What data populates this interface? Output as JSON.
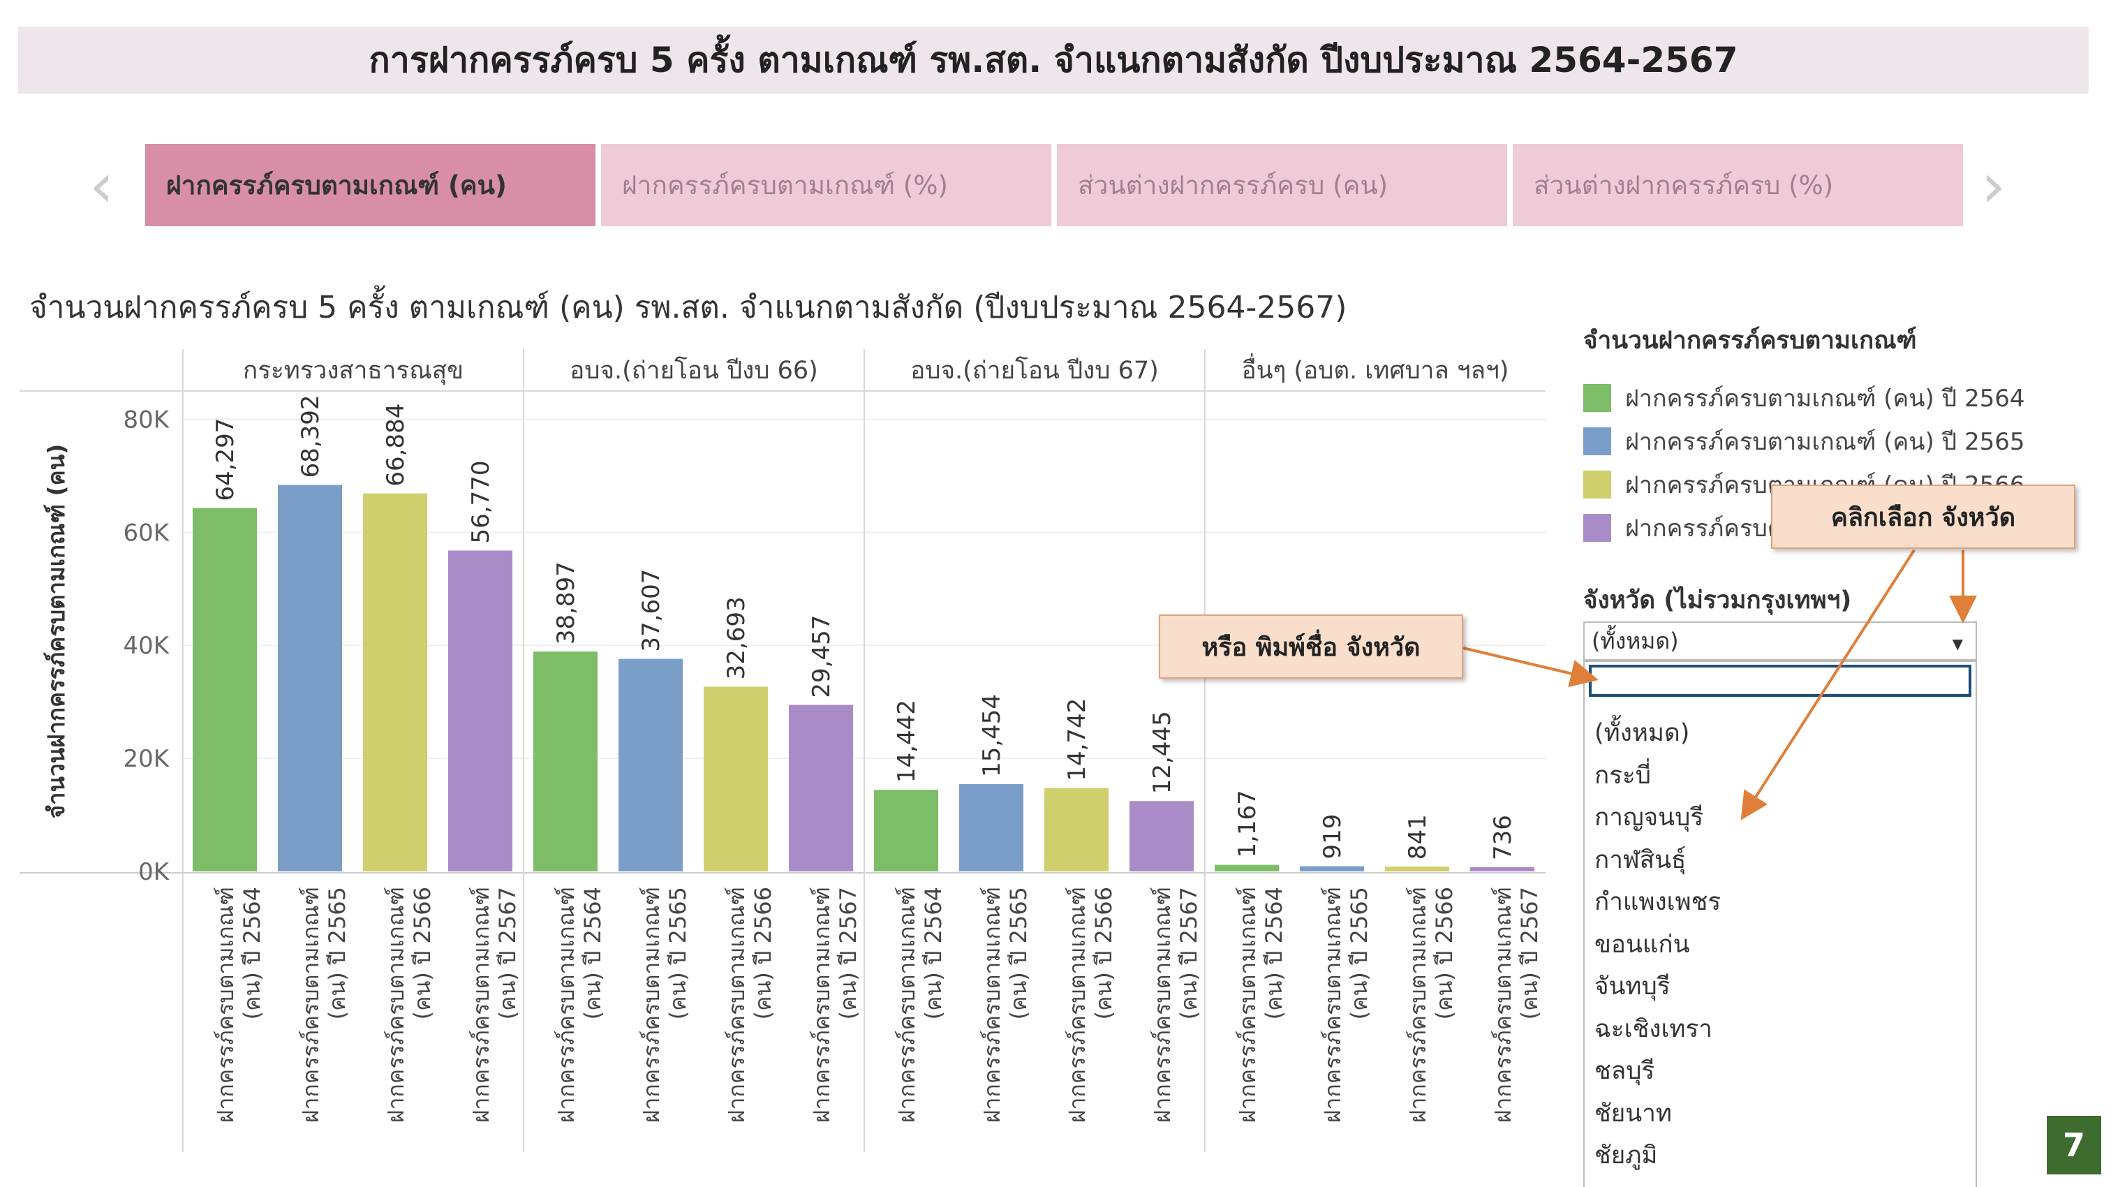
{
  "page": {
    "banner_title": "การฝากครรภ์ครบ 5 ครั้ง ตามเกณฑ์ รพ.สต. จำแนกตามสังกัด ปีงบประมาณ 2564-2567",
    "page_number": "7"
  },
  "tabs": [
    {
      "label": "ฝากครรภ์ครบตามเกณฑ์ (คน)",
      "active": true
    },
    {
      "label": "ฝากครรภ์ครบตามเกณฑ์ (%)",
      "active": false
    },
    {
      "label": "ส่วนต่างฝากครรภ์ครบ (คน)",
      "active": false
    },
    {
      "label": "ส่วนต่างฝากครรภ์ครบ (%)",
      "active": false
    }
  ],
  "nav": {
    "prev_icon": "chevron-left-icon",
    "next_icon": "chevron-right-icon"
  },
  "legend": {
    "title": "จำนวนฝากครรภ์ครบตามเกณฑ์",
    "items": [
      {
        "label": "ฝากครรภ์ครบตามเกณฑ์ (คน) ปี 2564",
        "color": "#7dbd68"
      },
      {
        "label": "ฝากครรภ์ครบตามเกณฑ์ (คน) ปี 2565",
        "color": "#7b9ec9"
      },
      {
        "label": "ฝากครรภ์ครบตามเกณฑ์ (คน) ปี 2566",
        "color": "#cfcf6e"
      },
      {
        "label": "ฝากครรภ์ครบตามเกณฑ์ (คน) ปี 2567",
        "color": "#a98bc7"
      }
    ]
  },
  "filter": {
    "title": "จังหวัด (ไม่รวมกรุงเทพฯ)",
    "selected": "(ทั้งหมด)",
    "search_value": "",
    "options": [
      "(ทั้งหมด)",
      "กระบี่",
      "กาญจนบุรี",
      "กาฬสินธุ์",
      "กำแพงเพชร",
      "ขอนแก่น",
      "จันทบุรี",
      "ฉะเชิงเทรา",
      "ชลบุรี",
      "ชัยนาท",
      "ชัยภูมิ"
    ]
  },
  "callouts": {
    "click_select": "คลิกเลือก จังหวัด",
    "type_name": "หรือ พิมพ์ชื่อ จังหวัด"
  },
  "chart_data": {
    "type": "bar",
    "title": "จำนวนฝากครรภ์ครบ 5 ครั้ง ตามเกณฑ์ (คน) รพ.สต. จำแนกตามสังกัด (ปีงบประมาณ 2564-2567)",
    "ylabel": "จำนวนฝากครรภ์ครบตามเกณฑ์ (คน)",
    "ylim": [
      0,
      85000
    ],
    "yticks": [
      0,
      20000,
      40000,
      60000,
      80000
    ],
    "ytick_labels": [
      "0K",
      "20K",
      "40K",
      "60K",
      "80K"
    ],
    "groups": [
      "กระทรวงสาธารณสุข",
      "อบจ.(ถ่ายโอน ปีงบ 66)",
      "อบจ.(ถ่ายโอน ปีงบ 67)",
      "อื่นๆ (อบต. เทศบาล ฯลฯ)"
    ],
    "categories": [
      "ฝากครรภ์ครบตามเกณฑ์ (คน) ปี 2564",
      "ฝากครรภ์ครบตามเกณฑ์ (คน) ปี 2565",
      "ฝากครรภ์ครบตามเกณฑ์ (คน) ปี 2566",
      "ฝากครรภ์ครบตามเกณฑ์ (คน) ปี 2567"
    ],
    "series": [
      {
        "group": "กระทรวงสาธารณสุข",
        "values": [
          64297,
          68392,
          66884,
          56770
        ],
        "labels": [
          "64,297",
          "68,392",
          "66,884",
          "56,770"
        ]
      },
      {
        "group": "อบจ.(ถ่ายโอน ปีงบ 66)",
        "values": [
          38897,
          37607,
          32693,
          29457
        ],
        "labels": [
          "38,897",
          "37,607",
          "32,693",
          "29,457"
        ]
      },
      {
        "group": "อบจ.(ถ่ายโอน ปีงบ 67)",
        "values": [
          14442,
          15454,
          14742,
          12445
        ],
        "labels": [
          "14,442",
          "15,454",
          "14,742",
          "12,445"
        ]
      },
      {
        "group": "อื่นๆ (อบต. เทศบาล ฯลฯ)",
        "values": [
          1167,
          919,
          841,
          736
        ],
        "labels": [
          "1,167",
          "919",
          "841",
          "736"
        ]
      }
    ],
    "colors": [
      "#7dbd68",
      "#7b9ec9",
      "#cfcf6e",
      "#a98bc7"
    ],
    "grid": true
  }
}
